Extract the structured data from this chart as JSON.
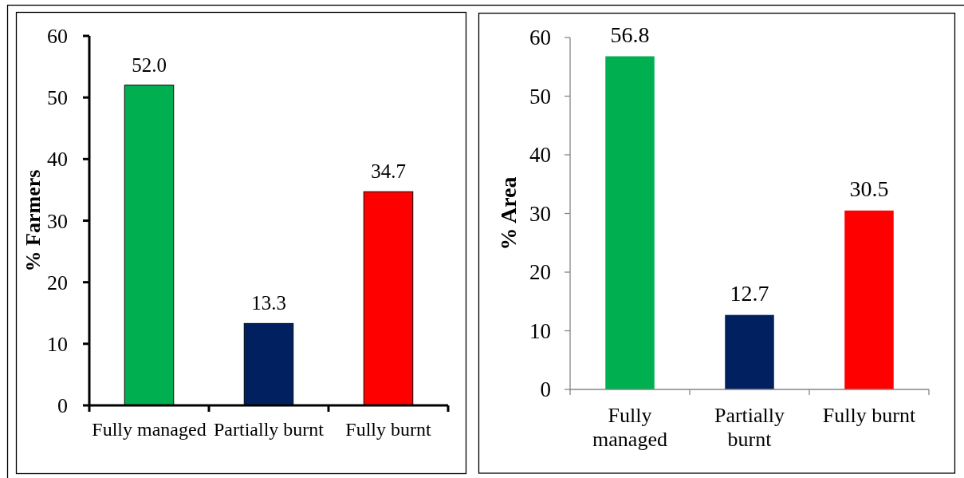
{
  "chart_data": [
    {
      "type": "bar",
      "ylabel": "% Farmers",
      "categories": [
        "Fully managed",
        "Partially burnt",
        "Fully burnt"
      ],
      "values": [
        52.0,
        13.3,
        34.7
      ],
      "colors": [
        "#00b050",
        "#002060",
        "#ff0000"
      ],
      "value_labels": [
        "52.0",
        "13.3",
        "34.7"
      ],
      "ylim": [
        0,
        60
      ],
      "yticks": [
        0,
        10,
        20,
        30,
        40,
        50,
        60
      ]
    },
    {
      "type": "bar",
      "ylabel": "% Area",
      "categories": [
        "Fully managed",
        "Partially burnt",
        "Fully burnt"
      ],
      "values": [
        56.8,
        12.7,
        30.5
      ],
      "colors": [
        "#00b050",
        "#002060",
        "#ff0000"
      ],
      "value_labels": [
        "56.8",
        "12.7",
        "30.5"
      ],
      "ylim": [
        0,
        60
      ],
      "yticks": [
        0,
        10,
        20,
        30,
        40,
        50,
        60
      ]
    }
  ]
}
